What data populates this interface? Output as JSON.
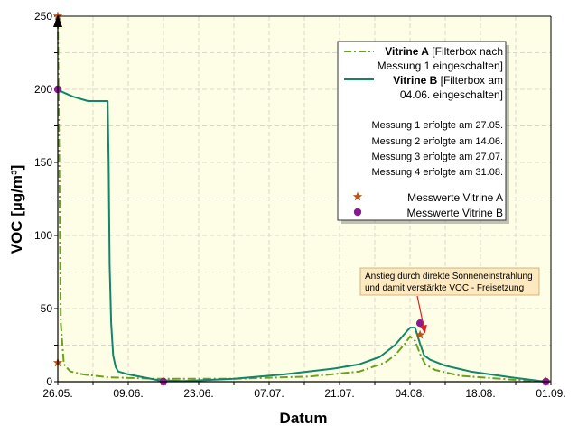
{
  "chart_data": {
    "type": "line",
    "xlabel": "Datum",
    "ylabel": "VOC [µg/m³]",
    "ylim": [
      0,
      250
    ],
    "yticks": [
      0,
      50,
      100,
      150,
      200,
      250
    ],
    "x_tick_labels": [
      "26.05.",
      "09.06.",
      "23.06.",
      "07.07.",
      "21.07.",
      "04.08.",
      "18.08.",
      "01.09."
    ],
    "x_range_days": [
      0,
      98
    ],
    "grid": true,
    "legend_position": "top-right",
    "series": [
      {
        "name_bold": "Vitrine A",
        "name_rest_1": " [Filterbox nach",
        "name_rest_2": "Messung 1 eingeschalten]",
        "style": "dash-dot",
        "color": "#6aa121",
        "x_days": [
          0,
          0.2,
          0.6,
          1.2,
          2.5,
          5,
          10,
          20,
          35,
          50,
          60,
          65,
          67,
          69,
          70,
          71,
          72,
          73,
          75,
          80,
          90,
          97
        ],
        "values": [
          250,
          180,
          40,
          12,
          7,
          5,
          3,
          2,
          2,
          3.5,
          7,
          13,
          18,
          26,
          31,
          28,
          19,
          12,
          8,
          4,
          1.5,
          0
        ]
      },
      {
        "name_bold": "Vitrine B",
        "name_rest_1": " [Filterbox am",
        "name_rest_2": "04.06. eingeschalten]",
        "style": "solid",
        "color": "#12866a",
        "x_days": [
          0,
          1,
          3,
          6,
          9.9,
          10.1,
          10.3,
          10.6,
          11,
          11.5,
          12,
          14,
          17,
          20,
          25,
          35,
          45,
          55,
          60,
          64,
          67,
          69,
          70,
          71,
          72,
          72.8,
          74,
          77,
          82,
          90,
          97
        ],
        "values": [
          200,
          198,
          195,
          192,
          192,
          150,
          80,
          40,
          18,
          10,
          7,
          5,
          3,
          1,
          0.5,
          2,
          5,
          9,
          12,
          17,
          25,
          33,
          37,
          37,
          26,
          18,
          15,
          11,
          7,
          3,
          0
        ]
      }
    ],
    "markers": [
      {
        "name": "Messwerte Vitrine A",
        "shape": "star",
        "color": "#b8561a",
        "x_days": [
          0,
          0,
          21,
          72,
          97
        ],
        "values": [
          250,
          13,
          0,
          32,
          0
        ]
      },
      {
        "name": "Messwerte Vitrine B",
        "shape": "circle",
        "color": "#8a1a8f",
        "x_days": [
          0,
          21,
          72,
          97
        ],
        "values": [
          200,
          0,
          40,
          0
        ]
      }
    ],
    "notes": [
      "Messung 1 erfolgte am 27.05.",
      "Messung 2 erfolgte am 14.06.",
      "Messung 3 erfolgte am 27.07.",
      "Messung 4 erfolgte am 31.08."
    ],
    "annotation": {
      "line1": "Anstieg durch direkte Sonneneinstrahlung",
      "line2": "und damit verstärkte VOC - Freisetzung",
      "target_x_days": 73,
      "target_value": 33
    },
    "colors": {
      "plot_background": "#fefee6",
      "grid": "#d8d8c8",
      "annotation_box": "#fde9c0",
      "arrow": "#e02020"
    }
  }
}
